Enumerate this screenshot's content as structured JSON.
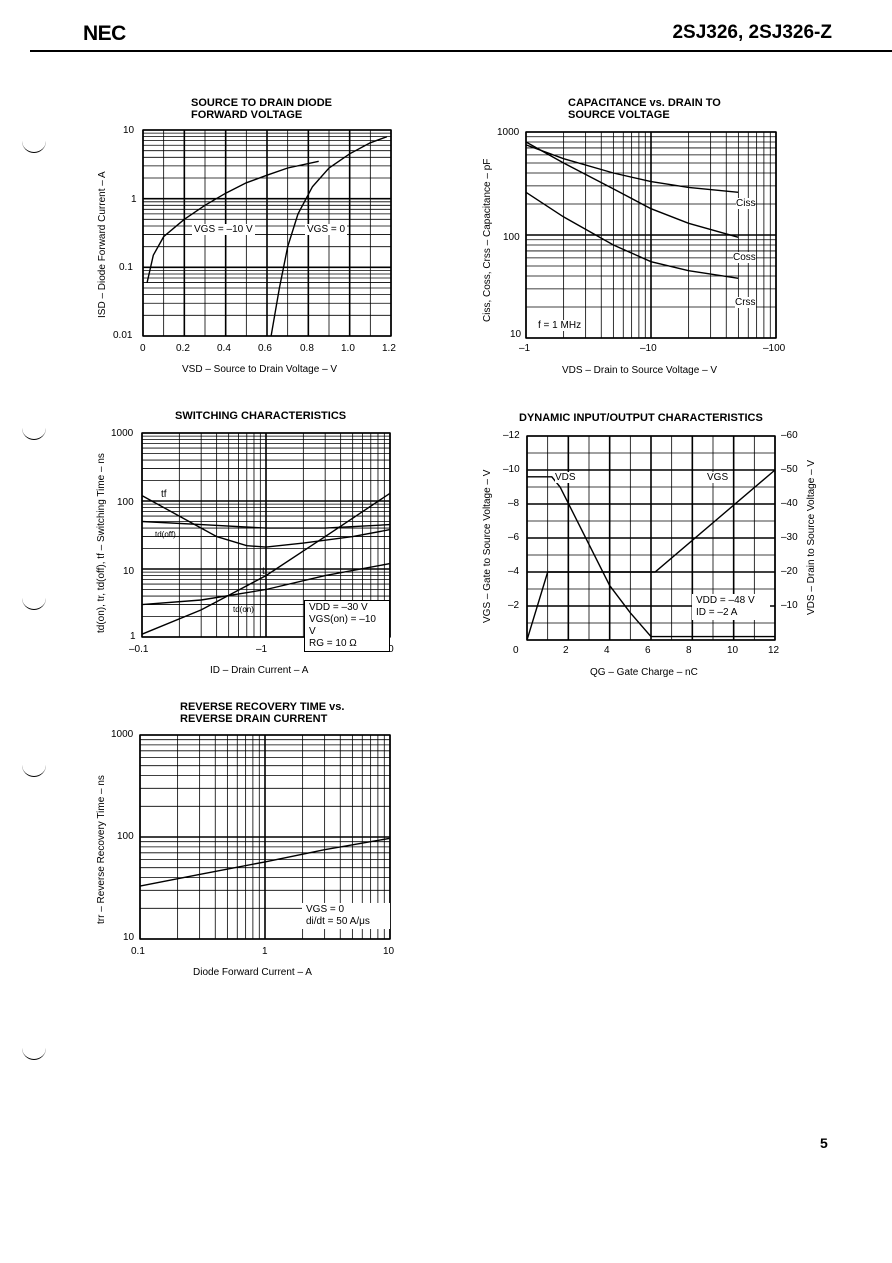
{
  "header": {
    "logo": "NEC",
    "part_number": "2SJ326, 2SJ326-Z"
  },
  "page_number": "5",
  "chart_data": [
    {
      "id": "source-drain-diode",
      "type": "line",
      "title": "SOURCE TO DRAIN DIODE",
      "title2": "FORWARD VOLTAGE",
      "xlabel": "VSD – Source to Drain Voltage – V",
      "ylabel": "ISD – Diode Forward Current – A",
      "xscale": "linear",
      "yscale": "log",
      "xlim": [
        0,
        1.2
      ],
      "ylim": [
        0.01,
        10
      ],
      "xticks": [
        "0",
        "0.2",
        "0.4",
        "0.6",
        "0.8",
        "1.0",
        "1.2"
      ],
      "yticks": [
        "0.01",
        "0.1",
        "1",
        "10"
      ],
      "series": [
        {
          "name": "VGS = –10 V",
          "points": [
            [
              0.02,
              0.06
            ],
            [
              0.05,
              0.15
            ],
            [
              0.1,
              0.28
            ],
            [
              0.2,
              0.5
            ],
            [
              0.3,
              0.8
            ],
            [
              0.4,
              1.2
            ],
            [
              0.5,
              1.7
            ],
            [
              0.6,
              2.2
            ],
            [
              0.7,
              2.8
            ],
            [
              0.85,
              3.5
            ]
          ]
        },
        {
          "name": "VGS = 0",
          "points": [
            [
              0.62,
              0.01
            ],
            [
              0.66,
              0.05
            ],
            [
              0.7,
              0.2
            ],
            [
              0.75,
              0.6
            ],
            [
              0.82,
              1.5
            ],
            [
              0.9,
              2.8
            ],
            [
              1.0,
              4.5
            ],
            [
              1.1,
              6.5
            ],
            [
              1.18,
              8.0
            ]
          ]
        }
      ],
      "annotations": [
        "VGS = –10 V",
        "VGS = 0"
      ]
    },
    {
      "id": "capacitance",
      "type": "line",
      "title": "CAPACITANCE vs. DRAIN TO",
      "title2": "SOURCE VOLTAGE",
      "xlabel": "VDS – Drain to Source Voltage – V",
      "ylabel": "Ciss, Coss, Crss – Capacitance – pF",
      "xscale": "log",
      "yscale": "log",
      "xlim": [
        1,
        100
      ],
      "ylim": [
        10,
        1000
      ],
      "xticks": [
        "–1",
        "–10",
        "–100"
      ],
      "yticks": [
        "10",
        "100",
        "1000"
      ],
      "series": [
        {
          "name": "Ciss",
          "points": [
            [
              1,
              750
            ],
            [
              2,
              550
            ],
            [
              5,
              400
            ],
            [
              10,
              330
            ],
            [
              20,
              290
            ],
            [
              50,
              260
            ]
          ]
        },
        {
          "name": "Coss",
          "points": [
            [
              1,
              800
            ],
            [
              2,
              500
            ],
            [
              5,
              280
            ],
            [
              10,
              180
            ],
            [
              20,
              130
            ],
            [
              50,
              95
            ]
          ]
        },
        {
          "name": "Crss",
          "points": [
            [
              1,
              260
            ],
            [
              2,
              150
            ],
            [
              5,
              80
            ],
            [
              10,
              55
            ],
            [
              20,
              45
            ],
            [
              50,
              38
            ]
          ]
        }
      ],
      "annotations": [
        "Ciss",
        "Coss",
        "Crss",
        "f = 1 MHz"
      ]
    },
    {
      "id": "switching",
      "type": "line",
      "title": "SWITCHING CHARACTERISTICS",
      "xlabel": "ID – Drain Current – A",
      "ylabel": "td(on), tr, td(off), tf – Switching Time – ns",
      "xscale": "log",
      "yscale": "log",
      "xlim": [
        0.1,
        10
      ],
      "ylim": [
        1,
        1000
      ],
      "xticks": [
        "–0.1",
        "–1",
        "–10"
      ],
      "yticks": [
        "1",
        "10",
        "100",
        "1000"
      ],
      "series": [
        {
          "name": "tf",
          "points": [
            [
              0.1,
              120
            ],
            [
              0.2,
              60
            ],
            [
              0.4,
              30
            ],
            [
              0.7,
              22
            ],
            [
              1,
              21
            ],
            [
              2,
              24
            ],
            [
              5,
              30
            ],
            [
              10,
              38
            ]
          ]
        },
        {
          "name": "td(off)",
          "points": [
            [
              0.1,
              50
            ],
            [
              0.3,
              45
            ],
            [
              1,
              40
            ],
            [
              3,
              40
            ],
            [
              10,
              45
            ]
          ]
        },
        {
          "name": "tr",
          "points": [
            [
              0.1,
              1.1
            ],
            [
              0.3,
              2.5
            ],
            [
              1,
              8
            ],
            [
              3,
              30
            ],
            [
              10,
              130
            ]
          ]
        },
        {
          "name": "td(on)",
          "points": [
            [
              0.1,
              3
            ],
            [
              0.3,
              3.5
            ],
            [
              1,
              5
            ],
            [
              3,
              8
            ],
            [
              10,
              12
            ]
          ]
        }
      ],
      "annotations": [
        "tf",
        "td(off)",
        "tr",
        "td(on)",
        "VDD = –30 V",
        "VGS(on) = –10 V",
        "RG = 10 Ω"
      ]
    },
    {
      "id": "dynamic-io",
      "type": "line",
      "title": "DYNAMIC INPUT/OUTPUT CHARACTERISTICS",
      "xlabel": "QG – Gate Charge – nC",
      "ylabel": "VGS – Gate to Source Voltage – V",
      "y2label": "VDS – Drain to Source Voltage – V",
      "xscale": "linear",
      "yscale": "linear",
      "xlim": [
        0,
        12
      ],
      "ylim": [
        0,
        -12
      ],
      "y2lim": [
        0,
        -60
      ],
      "xticks": [
        "0",
        "2",
        "4",
        "6",
        "8",
        "10",
        "12"
      ],
      "yticks": [
        "–2",
        "–4",
        "–6",
        "–8",
        "–10",
        "–12"
      ],
      "y2ticks": [
        "–10",
        "–20",
        "–30",
        "–40",
        "–50",
        "–60"
      ],
      "series": [
        {
          "name": "VDS",
          "axis": "right",
          "points": [
            [
              0,
              -48
            ],
            [
              1.2,
              -48
            ],
            [
              1.6,
              -45
            ],
            [
              4,
              -16
            ],
            [
              5,
              -8
            ],
            [
              6,
              -1
            ],
            [
              12,
              -1
            ]
          ]
        },
        {
          "name": "VGS",
          "axis": "left",
          "points": [
            [
              0,
              0
            ],
            [
              1,
              -4
            ],
            [
              1.5,
              -4
            ],
            [
              6.2,
              -4
            ],
            [
              12,
              -10
            ]
          ]
        }
      ],
      "annotations": [
        "VDS",
        "VGS",
        "VDD = –48 V",
        "ID = –2 A"
      ]
    },
    {
      "id": "reverse-recovery",
      "type": "line",
      "title": "REVERSE RECOVERY TIME vs.",
      "title2": "REVERSE DRAIN CURRENT",
      "xlabel": "Diode Forward Current – A",
      "ylabel": "trr – Reverse Recovery Time – ns",
      "xscale": "log",
      "yscale": "log",
      "xlim": [
        0.1,
        10
      ],
      "ylim": [
        10,
        1000
      ],
      "xticks": [
        "0.1",
        "1",
        "10"
      ],
      "yticks": [
        "10",
        "100",
        "1000"
      ],
      "series": [
        {
          "name": "trr",
          "points": [
            [
              0.1,
              33
            ],
            [
              0.3,
              43
            ],
            [
              1,
              57
            ],
            [
              3,
              75
            ],
            [
              10,
              97
            ]
          ]
        }
      ],
      "annotations": [
        "VGS = 0",
        "di/dt = 50 A/μs"
      ]
    }
  ]
}
